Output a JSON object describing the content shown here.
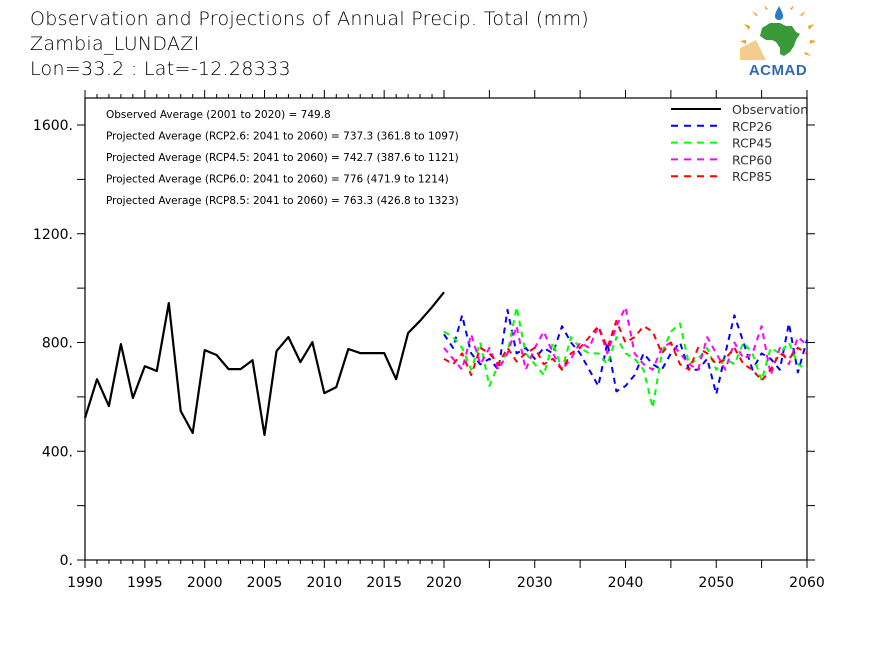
{
  "header": {
    "title": "Observation and Projections of Annual Precip. Total (mm)",
    "station": "Zambia_LUNDAZI",
    "coords": "Lon=33.2 : Lat=-12.28333"
  },
  "logo": {
    "text": "ACMAD"
  },
  "chart_data": {
    "type": "line",
    "title": "Observation and Projections of Annual Precip. Total (mm)",
    "xlabel": "",
    "ylabel": "",
    "ylim": [
      0,
      1700
    ],
    "xlim": [
      1990,
      2060
    ],
    "yticks": [
      0,
      400,
      800,
      1200,
      1600
    ],
    "ytick_labels": [
      "0.",
      "400.",
      "800.",
      "1200.",
      "1600."
    ],
    "xtick_labels": [
      "1990",
      "1995",
      "2000",
      "2005",
      "2010",
      "2015",
      "2020",
      "2030",
      "2040",
      "2050",
      "2060"
    ],
    "xticks": [
      1990,
      1995,
      2000,
      2005,
      2010,
      2015,
      2020,
      2030,
      2040,
      2050,
      2060
    ],
    "grid": false,
    "legend_position": "top-right",
    "annotations": [
      "Observed Average (2001 to 2020) = 749.8",
      "Projected Average (RCP2.6: 2041 to 2060) = 737.3 (361.8 to 1097)",
      "Projected Average (RCP4.5: 2041 to 2060) = 742.7 (387.6 to 1121)",
      "Projected Average (RCP6.0: 2041 to 2060) = 776 (471.9 to 1214)",
      "Projected Average (RCP8.5: 2041 to 2060) = 763.3 (426.8 to 1323)"
    ],
    "series": [
      {
        "name": "Observation",
        "color": "#000000",
        "dash": "solid",
        "x": [
          1990,
          1991,
          1992,
          1993,
          1994,
          1995,
          1996,
          1997,
          1998,
          1999,
          2000,
          2001,
          2002,
          2003,
          2004,
          2005,
          2006,
          2007,
          2008,
          2009,
          2010,
          2011,
          2012,
          2013,
          2014,
          2015,
          2016,
          2017,
          2018,
          2019,
          2020
        ],
        "values": [
          522,
          665,
          566,
          794,
          596,
          713,
          695,
          945,
          548,
          467,
          772,
          754,
          702,
          702,
          735,
          460,
          768,
          820,
          728,
          801,
          614,
          636,
          776,
          761,
          761,
          761,
          665,
          835,
          880,
          930,
          985
        ]
      },
      {
        "name": "RCP26",
        "color": "#0000ff",
        "dash": "dashed",
        "x": [
          2020,
          2021,
          2022,
          2023,
          2024,
          2025,
          2026,
          2027,
          2028,
          2029,
          2030,
          2031,
          2032,
          2033,
          2034,
          2035,
          2036,
          2037,
          2038,
          2039,
          2040,
          2041,
          2042,
          2043,
          2044,
          2045,
          2046,
          2047,
          2048,
          2049,
          2050,
          2051,
          2052,
          2053,
          2054,
          2055,
          2056,
          2057,
          2058,
          2059,
          2060
        ],
        "values": [
          830,
          780,
          900,
          760,
          720,
          740,
          700,
          920,
          760,
          780,
          740,
          780,
          760,
          860,
          800,
          760,
          700,
          640,
          800,
          620,
          640,
          680,
          760,
          720,
          700,
          760,
          800,
          700,
          700,
          740,
          610,
          760,
          900,
          800,
          700,
          760,
          740,
          700,
          870,
          690,
          810
        ]
      },
      {
        "name": "RCP45",
        "color": "#00ff00",
        "dash": "dashed",
        "x": [
          2020,
          2021,
          2022,
          2023,
          2024,
          2025,
          2026,
          2027,
          2028,
          2029,
          2030,
          2031,
          2032,
          2033,
          2034,
          2035,
          2036,
          2037,
          2038,
          2039,
          2040,
          2041,
          2042,
          2043,
          2044,
          2045,
          2046,
          2047,
          2048,
          2049,
          2050,
          2051,
          2052,
          2053,
          2054,
          2055,
          2056,
          2057,
          2058,
          2059,
          2060
        ],
        "values": [
          840,
          820,
          780,
          700,
          800,
          640,
          720,
          760,
          930,
          760,
          720,
          680,
          800,
          700,
          820,
          780,
          760,
          760,
          720,
          820,
          760,
          740,
          700,
          560,
          760,
          840,
          870,
          720,
          740,
          780,
          700,
          740,
          720,
          800,
          760,
          660,
          780,
          760,
          800,
          720,
          700
        ]
      },
      {
        "name": "RCP60",
        "color": "#ff00ff",
        "dash": "dashed",
        "x": [
          2020,
          2021,
          2022,
          2023,
          2024,
          2025,
          2026,
          2027,
          2028,
          2029,
          2030,
          2031,
          2032,
          2033,
          2034,
          2035,
          2036,
          2037,
          2038,
          2039,
          2040,
          2041,
          2042,
          2043,
          2044,
          2045,
          2046,
          2047,
          2048,
          2049,
          2050,
          2051,
          2052,
          2053,
          2054,
          2055,
          2056,
          2057,
          2058,
          2059,
          2060
        ],
        "values": [
          780,
          740,
          700,
          830,
          720,
          780,
          700,
          760,
          860,
          700,
          780,
          840,
          760,
          700,
          740,
          800,
          780,
          860,
          760,
          860,
          930,
          760,
          720,
          700,
          780,
          800,
          760,
          720,
          700,
          820,
          760,
          700,
          800,
          740,
          760,
          860,
          680,
          780,
          720,
          820,
          790
        ]
      },
      {
        "name": "RCP85",
        "color": "#ff0000",
        "dash": "dashed",
        "x": [
          2020,
          2021,
          2022,
          2023,
          2024,
          2025,
          2026,
          2027,
          2028,
          2029,
          2030,
          2031,
          2032,
          2033,
          2034,
          2035,
          2036,
          2037,
          2038,
          2039,
          2040,
          2041,
          2042,
          2043,
          2044,
          2045,
          2046,
          2047,
          2048,
          2049,
          2050,
          2051,
          2052,
          2053,
          2054,
          2055,
          2056,
          2057,
          2058,
          2059,
          2060
        ],
        "values": [
          740,
          720,
          760,
          680,
          780,
          760,
          720,
          780,
          730,
          760,
          780,
          720,
          740,
          700,
          760,
          780,
          820,
          860,
          780,
          880,
          800,
          820,
          860,
          840,
          760,
          800,
          720,
          700,
          780,
          760,
          720,
          740,
          780,
          720,
          700,
          660,
          700,
          760,
          740,
          780,
          760
        ]
      }
    ]
  }
}
